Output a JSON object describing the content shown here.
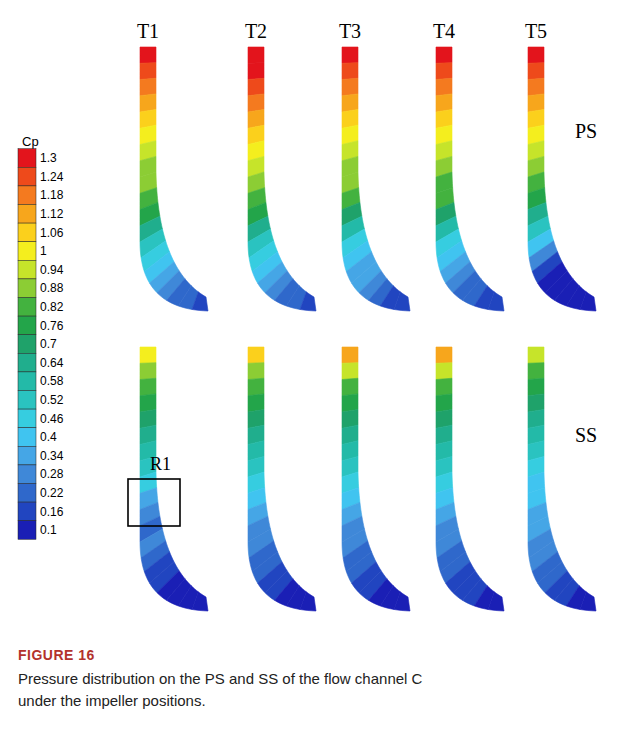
{
  "chart_data": {
    "type": "contour",
    "columns": [
      "T1",
      "T2",
      "T3",
      "T4",
      "T5"
    ],
    "rows": [
      "PS",
      "SS"
    ],
    "cells": [
      [
        [
          1.3,
          1.24,
          1.18,
          1.12,
          1.06,
          1,
          0.94,
          0.88,
          0.88,
          0.82,
          0.76,
          0.64,
          0.52,
          0.46,
          0.4,
          0.34,
          0.28,
          0.22,
          0.22,
          0.16
        ],
        [
          1.3,
          1.3,
          1.24,
          1.18,
          1.12,
          1.06,
          1,
          0.94,
          0.88,
          0.82,
          0.76,
          0.64,
          0.52,
          0.46,
          0.4,
          0.34,
          0.28,
          0.22,
          0.22,
          0.16
        ],
        [
          1.3,
          1.24,
          1.18,
          1.12,
          1.06,
          1,
          0.94,
          0.88,
          0.88,
          0.82,
          0.7,
          0.58,
          0.46,
          0.4,
          0.34,
          0.34,
          0.28,
          0.22,
          0.16,
          0.16
        ],
        [
          1.3,
          1.24,
          1.18,
          1.12,
          1.06,
          1,
          0.94,
          0.88,
          0.82,
          0.82,
          0.7,
          0.58,
          0.46,
          0.4,
          0.34,
          0.28,
          0.22,
          0.22,
          0.16,
          0.16
        ],
        [
          1.3,
          1.24,
          1.18,
          1.12,
          1.06,
          1,
          0.94,
          0.88,
          0.82,
          0.76,
          0.64,
          0.52,
          0.4,
          0.28,
          0.16,
          0.1,
          0.1,
          0.1,
          0.1,
          0.1
        ]
      ],
      [
        [
          1,
          0.88,
          0.82,
          0.76,
          0.7,
          0.64,
          0.58,
          0.52,
          0.46,
          0.34,
          0.28,
          0.22,
          0.28,
          0.22,
          0.16,
          0.16,
          0.1,
          0.1,
          0.1,
          0.1
        ],
        [
          1.06,
          0.88,
          0.82,
          0.76,
          0.7,
          0.64,
          0.58,
          0.52,
          0.46,
          0.4,
          0.34,
          0.28,
          0.28,
          0.22,
          0.22,
          0.16,
          0.16,
          0.1,
          0.1,
          0.1
        ],
        [
          1.12,
          0.94,
          0.82,
          0.76,
          0.7,
          0.64,
          0.58,
          0.52,
          0.46,
          0.4,
          0.34,
          0.28,
          0.28,
          0.22,
          0.22,
          0.16,
          0.16,
          0.1,
          0.1,
          0.1
        ],
        [
          1.12,
          0.94,
          0.82,
          0.76,
          0.7,
          0.64,
          0.58,
          0.52,
          0.46,
          0.4,
          0.34,
          0.28,
          0.28,
          0.22,
          0.22,
          0.16,
          0.16,
          0.16,
          0.1,
          0.1
        ],
        [
          0.94,
          0.82,
          0.76,
          0.7,
          0.64,
          0.58,
          0.52,
          0.46,
          0.4,
          0.4,
          0.34,
          0.34,
          0.28,
          0.28,
          0.22,
          0.22,
          0.16,
          0.16,
          0.1,
          0.1
        ]
      ]
    ],
    "colorbar": {
      "title": "Cp",
      "ticks": [
        1.3,
        1.24,
        1.18,
        1.12,
        1.06,
        1,
        0.94,
        0.88,
        0.82,
        0.76,
        0.7,
        0.64,
        0.58,
        0.52,
        0.46,
        0.4,
        0.34,
        0.28,
        0.22,
        0.16,
        0.1
      ],
      "colors": [
        "#e3141c",
        "#ee4a1b",
        "#f47a1f",
        "#f7a61c",
        "#fbd01c",
        "#f4ee1e",
        "#c6e42a",
        "#8ccd34",
        "#43b23f",
        "#23a54a",
        "#1fa26a",
        "#20ae8d",
        "#23baa8",
        "#2ac3c0",
        "#36cde0",
        "#40c4f0",
        "#45a6e6",
        "#3f88d8",
        "#2f68cb",
        "#2145c0",
        "#1a1fb5"
      ]
    },
    "annotations": [
      {
        "text": "R1"
      }
    ],
    "caption": {
      "label": "FIGURE 16",
      "text": "Pressure distribution on the PS and SS of the flow channel C under the impeller positions."
    }
  }
}
